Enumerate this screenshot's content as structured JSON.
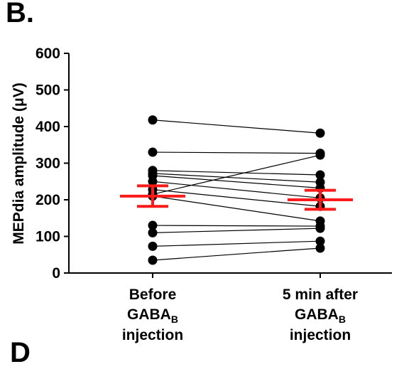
{
  "panel_label": "B.",
  "cut_label": "D",
  "chart_data": {
    "type": "scatter",
    "subtype": "paired-before-after",
    "title": "",
    "ylabel": "MEPdia amplitude (μV)",
    "ylim": [
      0,
      600
    ],
    "yticks": [
      0,
      100,
      200,
      300,
      400,
      500,
      600
    ],
    "grid": false,
    "categories": [
      {
        "line1": "Before",
        "line2_main": "GABA",
        "line2_sub": "B",
        "line3": "injection"
      },
      {
        "line1": "5 min after",
        "line2_main": "GABA",
        "line2_sub": "B",
        "line3": "injection"
      }
    ],
    "pairs": [
      [
        418,
        382
      ],
      [
        330,
        327
      ],
      [
        280,
        268
      ],
      [
        272,
        248
      ],
      [
        266,
        232
      ],
      [
        250,
        205
      ],
      [
        228,
        182
      ],
      [
        215,
        322
      ],
      [
        210,
        142
      ],
      [
        130,
        128
      ],
      [
        110,
        122
      ],
      [
        73,
        87
      ],
      [
        35,
        68
      ]
    ],
    "summary": [
      {
        "mean": 210,
        "upper": 238,
        "lower": 182
      },
      {
        "mean": 200,
        "upper": 226,
        "lower": 174
      }
    ],
    "colors": {
      "points": "#000000",
      "lines": "#000000",
      "summary": "#ff1a1a"
    }
  }
}
